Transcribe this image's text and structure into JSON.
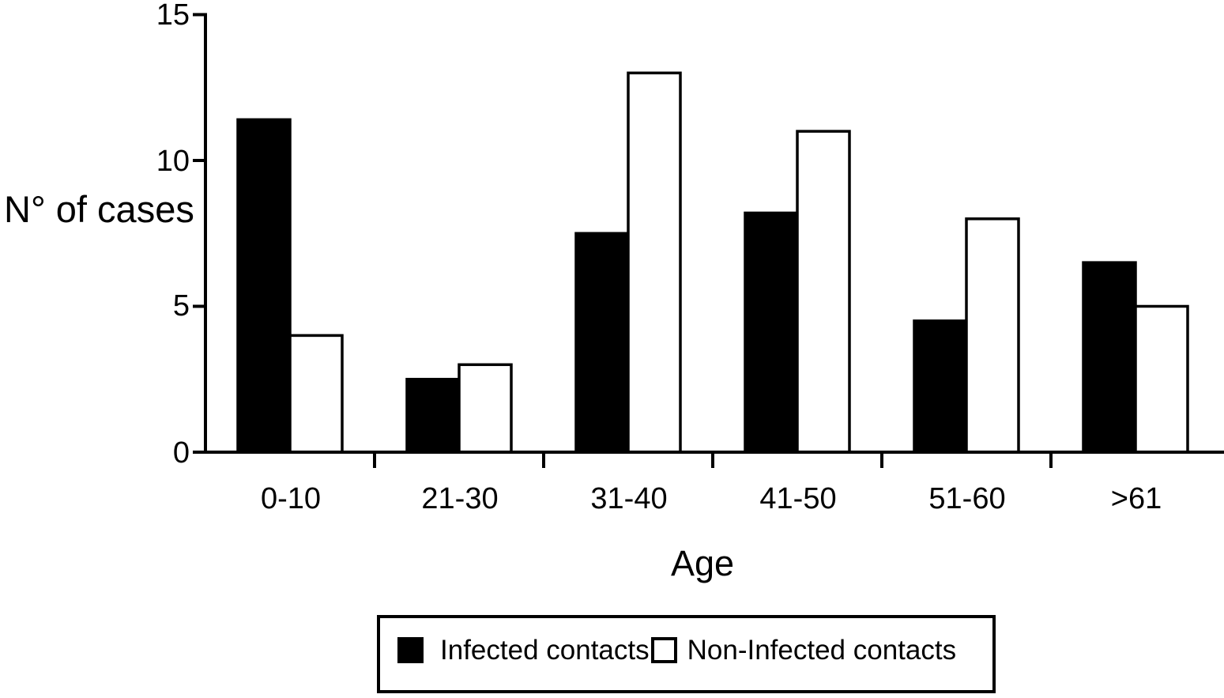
{
  "chart_data": {
    "type": "bar",
    "title": "",
    "categories": [
      "0-10",
      "21-30",
      "31-40",
      "41-50",
      "51-60",
      ">61"
    ],
    "series": [
      {
        "name": "Infected contacts",
        "fill": "#000000",
        "values": [
          11.4,
          2.5,
          7.5,
          8.2,
          4.5,
          6.5
        ]
      },
      {
        "name": "Non-Infected contacts",
        "fill": "#ffffff",
        "values": [
          4,
          3,
          13,
          11,
          8,
          5
        ]
      }
    ],
    "xlabel": "Age",
    "ylabel": "N° of cases",
    "ylim": [
      0,
      15
    ],
    "yticks": [
      0,
      5,
      10,
      15
    ],
    "grid": false,
    "bar_outline": "#000000",
    "legend_position": "bottom-center"
  },
  "axes": {
    "ylabel": "N° of cases",
    "xlabel": "Age",
    "ytick_labels": [
      "15",
      "10",
      "5",
      "0"
    ],
    "xtick_labels": [
      "0-10",
      "21-30",
      "31-40",
      "41-50",
      "51-60",
      ">61"
    ]
  },
  "legend": {
    "items": [
      {
        "label": "Infected contacts",
        "swatch": "black-filled-square"
      },
      {
        "label": "Non-Infected contacts",
        "swatch": "white-outlined-square"
      }
    ]
  },
  "colors": {
    "foreground": "#000000",
    "background": "#ffffff"
  }
}
